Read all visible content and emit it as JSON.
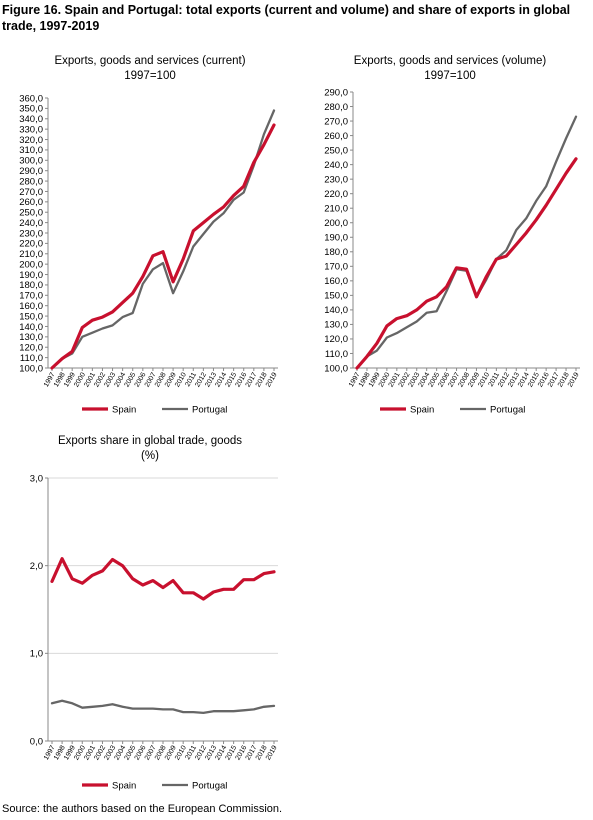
{
  "figure_title": "Figure 16. Spain and Portugal: total exports (current and volume) and share of exports in global trade, 1997-2019",
  "source": "Source: the authors based on the European Commission.",
  "colors": {
    "spain": "#c8102e",
    "portugal": "#666666",
    "grid": "#d9d9d9",
    "axis": "#888888"
  },
  "chart_data": [
    {
      "type": "line",
      "title": "Exports, goods and services (current)",
      "subtitle": "1997=100",
      "x": [
        "1997",
        "1998",
        "1999",
        "2000",
        "2001",
        "2002",
        "2003",
        "2004",
        "2005",
        "2006",
        "2007",
        "2008",
        "2009",
        "2010",
        "2011",
        "2012",
        "2013",
        "2014",
        "2015",
        "2016",
        "2017",
        "2018",
        "2019"
      ],
      "ylim": [
        100,
        360
      ],
      "ystep": 10,
      "ydecimals": 1,
      "grid": false,
      "legend_position": "bottom",
      "series": [
        {
          "name": "Spain",
          "values": [
            100,
            109,
            116,
            139,
            146,
            149,
            154,
            163,
            172,
            188,
            208,
            212,
            183,
            205,
            232,
            240,
            248,
            255,
            266,
            275,
            298,
            315,
            334
          ]
        },
        {
          "name": "Portugal",
          "values": [
            100,
            109,
            114,
            130,
            134,
            138,
            141,
            149,
            153,
            181,
            195,
            201,
            172,
            193,
            217,
            229,
            241,
            249,
            262,
            269,
            295,
            325,
            348
          ]
        }
      ]
    },
    {
      "type": "line",
      "title": "Exports, goods and services (volume)",
      "subtitle": "1997=100",
      "x": [
        "1997",
        "1998",
        "1999",
        "2000",
        "2001",
        "2002",
        "2003",
        "2004",
        "2005",
        "2006",
        "2007",
        "2008",
        "2009",
        "2010",
        "2011",
        "2012",
        "2013",
        "2014",
        "2015",
        "2016",
        "2017",
        "2018",
        "2019"
      ],
      "ylim": [
        100,
        290
      ],
      "ystep": 10,
      "ydecimals": 1,
      "grid": false,
      "legend_position": "bottom",
      "series": [
        {
          "name": "Spain",
          "values": [
            100,
            108,
            117,
            129,
            134,
            136,
            140,
            146,
            149,
            156,
            169,
            168,
            149,
            163,
            175,
            177,
            185,
            193,
            202,
            212,
            223,
            234,
            244
          ]
        },
        {
          "name": "Portugal",
          "values": [
            100,
            108,
            112,
            121,
            124,
            128,
            132,
            138,
            139,
            153,
            168,
            167,
            149,
            161,
            175,
            181,
            195,
            203,
            215,
            225,
            242,
            258,
            273
          ]
        }
      ]
    },
    {
      "type": "line",
      "title": "Exports share in global trade, goods",
      "subtitle": "(%)",
      "x": [
        "1997",
        "1998",
        "1999",
        "2000",
        "2001",
        "2002",
        "2003",
        "2004",
        "2005",
        "2006",
        "2007",
        "2008",
        "2009",
        "2010",
        "2011",
        "2012",
        "2013",
        "2014",
        "2015",
        "2016",
        "2017",
        "2018",
        "2019"
      ],
      "ylim": [
        0,
        3
      ],
      "ystep": 1,
      "ydecimals": 1,
      "grid": true,
      "legend_position": "bottom",
      "series": [
        {
          "name": "Spain",
          "values": [
            1.82,
            2.08,
            1.85,
            1.8,
            1.89,
            1.94,
            2.07,
            2.0,
            1.85,
            1.78,
            1.83,
            1.75,
            1.83,
            1.69,
            1.69,
            1.62,
            1.7,
            1.73,
            1.73,
            1.84,
            1.84,
            1.91,
            1.93
          ]
        },
        {
          "name": "Portugal",
          "values": [
            0.43,
            0.46,
            0.43,
            0.38,
            0.39,
            0.4,
            0.42,
            0.39,
            0.37,
            0.37,
            0.37,
            0.36,
            0.36,
            0.33,
            0.33,
            0.32,
            0.34,
            0.34,
            0.34,
            0.35,
            0.36,
            0.39,
            0.4
          ]
        }
      ]
    }
  ]
}
